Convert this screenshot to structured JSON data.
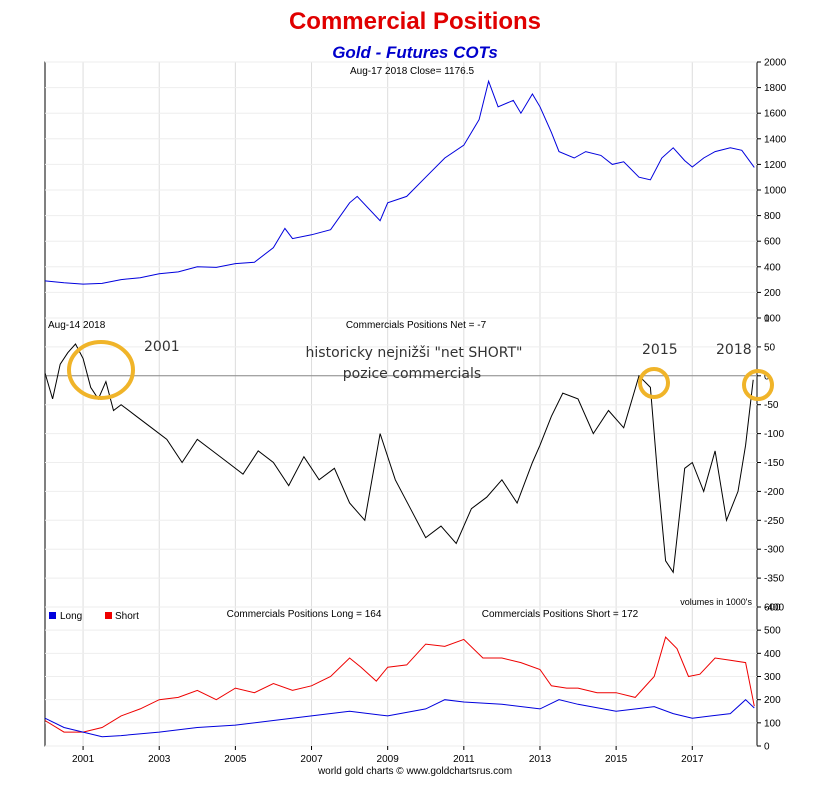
{
  "title": "Commercial Positions",
  "subtitle": "Gold - Futures COTs",
  "footer": "world gold charts © www.goldchartsrus.com",
  "colors": {
    "price": "#0000dd",
    "net": "#000000",
    "long": "#0000dd",
    "short": "#ee0000",
    "circle": "#f0b429",
    "title": "#e00000",
    "subtitle": "#0000cc"
  },
  "chart_data": [
    {
      "type": "line",
      "panel": "price",
      "header": "Aug-17  2018   Close= 1176.5",
      "ylim": [
        0,
        2000
      ],
      "yticks": [
        0,
        200,
        400,
        600,
        800,
        1000,
        1200,
        1400,
        1600,
        1800,
        2000
      ],
      "series": [
        {
          "x": [
            2000.0,
            2000.5,
            2001.0,
            2001.5,
            2002.0,
            2002.5,
            2003.0,
            2003.5,
            2004.0,
            2004.5,
            2005.0,
            2005.5,
            2006.0,
            2006.3,
            2006.5,
            2007.0,
            2007.5,
            2008.0,
            2008.2,
            2008.8,
            2009.0,
            2009.5,
            2010.0,
            2010.5,
            2011.0,
            2011.4,
            2011.65,
            2011.9,
            2012.3,
            2012.5,
            2012.8,
            2013.0,
            2013.3,
            2013.5,
            2013.9,
            2014.2,
            2014.6,
            2014.9,
            2015.2,
            2015.6,
            2015.9,
            2016.2,
            2016.5,
            2016.8,
            2017.0,
            2017.3,
            2017.6,
            2018.0,
            2018.3,
            2018.63
          ],
          "y": [
            290,
            275,
            265,
            270,
            300,
            315,
            345,
            360,
            400,
            395,
            425,
            435,
            550,
            700,
            620,
            650,
            690,
            900,
            950,
            760,
            900,
            950,
            1100,
            1250,
            1350,
            1550,
            1850,
            1650,
            1700,
            1600,
            1750,
            1650,
            1450,
            1300,
            1250,
            1300,
            1270,
            1200,
            1220,
            1100,
            1080,
            1250,
            1330,
            1230,
            1180,
            1250,
            1300,
            1330,
            1310,
            1176.5
          ]
        }
      ]
    },
    {
      "type": "line",
      "panel": "net",
      "header": "Aug-14  2018",
      "series_label": "Commercials Positions Net = -7",
      "units_note": "volumes in 1000's",
      "ylim": [
        -400,
        100
      ],
      "yticks": [
        -400,
        -350,
        -300,
        -250,
        -200,
        -150,
        -100,
        -50,
        0,
        50,
        100
      ],
      "annotations": [
        "2001",
        "2015",
        "2018",
        "historicky nejnižši \"net SHORT\"",
        "pozice commercials"
      ],
      "series": [
        {
          "x": [
            2000.0,
            2000.2,
            2000.4,
            2000.6,
            2000.8,
            2001.0,
            2001.2,
            2001.4,
            2001.6,
            2001.8,
            2002.0,
            2002.4,
            2002.8,
            2003.2,
            2003.6,
            2004.0,
            2004.4,
            2004.8,
            2005.2,
            2005.6,
            2006.0,
            2006.4,
            2006.8,
            2007.2,
            2007.6,
            2008.0,
            2008.4,
            2008.8,
            2009.2,
            2009.6,
            2010.0,
            2010.4,
            2010.8,
            2011.2,
            2011.6,
            2012.0,
            2012.4,
            2012.8,
            2013.0,
            2013.3,
            2013.6,
            2014.0,
            2014.4,
            2014.8,
            2015.2,
            2015.6,
            2015.9,
            2016.1,
            2016.3,
            2016.5,
            2016.8,
            2017.0,
            2017.3,
            2017.6,
            2017.9,
            2018.2,
            2018.4,
            2018.6
          ],
          "y": [
            5,
            -40,
            20,
            40,
            55,
            30,
            -20,
            -40,
            -10,
            -60,
            -50,
            -70,
            -90,
            -110,
            -150,
            -110,
            -130,
            -150,
            -170,
            -130,
            -150,
            -190,
            -140,
            -180,
            -160,
            -220,
            -250,
            -100,
            -180,
            -230,
            -280,
            -260,
            -290,
            -230,
            -210,
            -180,
            -220,
            -150,
            -120,
            -70,
            -30,
            -40,
            -100,
            -60,
            -90,
            0,
            -20,
            -180,
            -320,
            -340,
            -160,
            -150,
            -200,
            -130,
            -250,
            -200,
            -120,
            -7
          ]
        }
      ]
    },
    {
      "type": "line",
      "panel": "long-short",
      "series_label_long": "Commercials Positions Long = 164",
      "series_label_short": "Commercials Positions Short = 172",
      "ylim": [
        0,
        600
      ],
      "yticks": [
        0,
        100,
        200,
        300,
        400,
        500,
        600
      ],
      "xlim": [
        2000.0,
        2018.7
      ],
      "xticks": [
        "2001",
        "2003",
        "2005",
        "2007",
        "2009",
        "2011",
        "2013",
        "2015",
        "2017"
      ],
      "series": [
        {
          "name": "Long",
          "x": [
            2000.0,
            2000.5,
            2001.0,
            2001.5,
            2002.0,
            2003.0,
            2004.0,
            2005.0,
            2006.0,
            2007.0,
            2008.0,
            2009.0,
            2010.0,
            2010.5,
            2011.0,
            2012.0,
            2013.0,
            2013.5,
            2014.0,
            2015.0,
            2016.0,
            2016.5,
            2017.0,
            2017.5,
            2018.0,
            2018.4,
            2018.63
          ],
          "y": [
            120,
            80,
            60,
            40,
            45,
            60,
            80,
            90,
            110,
            130,
            150,
            130,
            160,
            200,
            190,
            180,
            160,
            200,
            180,
            150,
            170,
            140,
            120,
            130,
            140,
            200,
            164
          ]
        },
        {
          "name": "Short",
          "x": [
            2000.0,
            2000.5,
            2001.0,
            2001.5,
            2002.0,
            2002.5,
            2003.0,
            2003.5,
            2004.0,
            2004.5,
            2005.0,
            2005.5,
            2006.0,
            2006.5,
            2007.0,
            2007.5,
            2008.0,
            2008.3,
            2008.7,
            2009.0,
            2009.5,
            2010.0,
            2010.5,
            2011.0,
            2011.5,
            2012.0,
            2012.5,
            2013.0,
            2013.3,
            2013.7,
            2014.0,
            2014.5,
            2015.0,
            2015.5,
            2016.0,
            2016.3,
            2016.6,
            2016.9,
            2017.2,
            2017.6,
            2018.0,
            2018.4,
            2018.63
          ],
          "y": [
            110,
            60,
            60,
            80,
            130,
            160,
            200,
            210,
            240,
            200,
            250,
            230,
            270,
            240,
            260,
            300,
            380,
            340,
            280,
            340,
            350,
            440,
            430,
            460,
            380,
            380,
            360,
            330,
            260,
            250,
            250,
            230,
            230,
            210,
            300,
            470,
            420,
            300,
            310,
            380,
            370,
            360,
            172
          ]
        }
      ]
    }
  ]
}
